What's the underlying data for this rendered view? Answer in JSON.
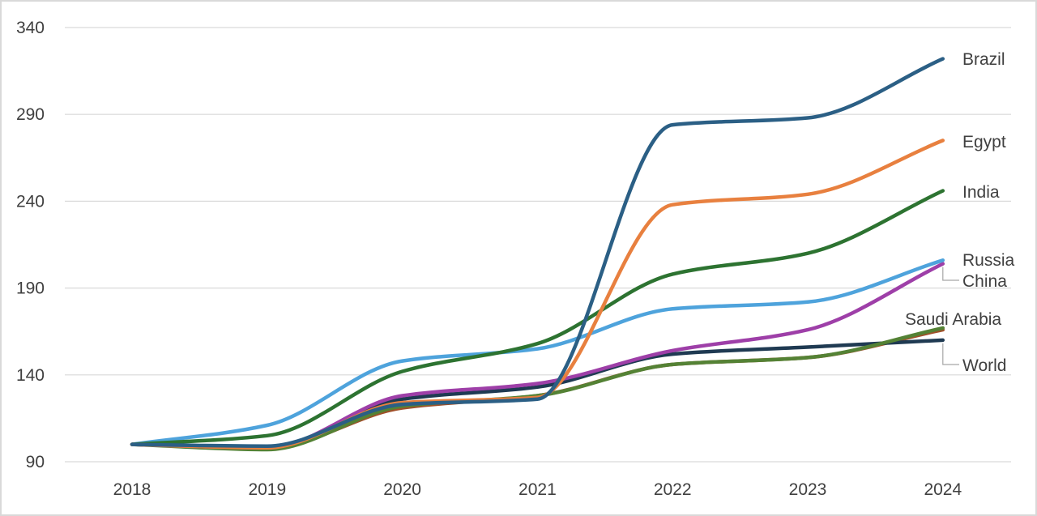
{
  "chart_data": {
    "type": "line",
    "title": "",
    "xlabel": "",
    "ylabel": "",
    "x": [
      "2018",
      "2019",
      "2020",
      "2021",
      "2022",
      "2023",
      "2024"
    ],
    "ylim": [
      90,
      340
    ],
    "yticks": [
      90,
      140,
      190,
      240,
      290,
      340
    ],
    "grid": true,
    "legend": "direct labels at line ends (right)",
    "series": [
      {
        "name": "World",
        "color": "#1f3a52",
        "values": [
          100,
          98,
          126,
          133,
          152,
          156,
          160
        ]
      },
      {
        "name": "Saudi Arabia",
        "color": "#548235",
        "values": [
          100,
          97,
          122,
          128,
          146,
          150,
          167
        ]
      },
      {
        "name": "China",
        "color": "#9e3fa8",
        "values": [
          100,
          98,
          128,
          135,
          154,
          166,
          204
        ]
      },
      {
        "name": "Russia",
        "color": "#4ea3dc",
        "values": [
          100,
          111,
          148,
          155,
          178,
          182,
          206
        ]
      },
      {
        "name": "India",
        "color": "#2d7331",
        "values": [
          100,
          105,
          142,
          158,
          198,
          210,
          246
        ]
      },
      {
        "name": "Egypt",
        "color": "#e8803f",
        "values": [
          100,
          98,
          124,
          127,
          238,
          244,
          275
        ]
      },
      {
        "name": "Brazil",
        "color": "#2b5f85",
        "values": [
          100,
          99,
          123,
          126,
          284,
          288,
          322
        ]
      },
      {
        "name": "",
        "color": "#a0502a",
        "values": [
          100,
          98,
          121,
          128,
          146,
          150,
          166
        ]
      }
    ]
  }
}
